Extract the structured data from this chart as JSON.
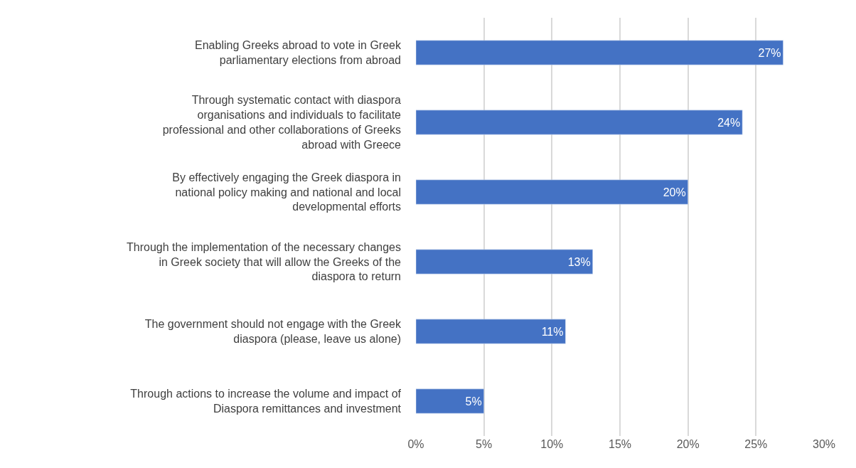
{
  "chart_data": {
    "type": "bar",
    "orientation": "horizontal",
    "categories": [
      "Enabling Greeks abroad to vote in Greek parliamentary elections from abroad",
      "Through systematic contact with diaspora organisations and individuals to facilitate professional and other collaborations of Greeks abroad with Greece",
      "By effectively engaging the Greek diaspora in national policy making and national and local developmental efforts",
      "Through the implementation of the necessary changes in Greek society that will allow the Greeks of the diaspora to return",
      "The government should not engage with the Greek diaspora (please, leave us alone)",
      "Through actions to increase the volume and impact of Diaspora remittances and investment"
    ],
    "values": [
      27,
      24,
      20,
      13,
      11,
      5
    ],
    "value_labels": [
      "27%",
      "24%",
      "20%",
      "13%",
      "11%",
      "5%"
    ],
    "color": "#4472c4",
    "xlim": [
      0,
      30
    ],
    "xticks": [
      {
        "value": 0,
        "label": "0%"
      },
      {
        "value": 5,
        "label": "5%"
      },
      {
        "value": 10,
        "label": "10%"
      },
      {
        "value": 15,
        "label": "15%"
      },
      {
        "value": 20,
        "label": "20%"
      },
      {
        "value": 25,
        "label": "25%"
      },
      {
        "value": 30,
        "label": "30%"
      }
    ],
    "grid": "x"
  }
}
